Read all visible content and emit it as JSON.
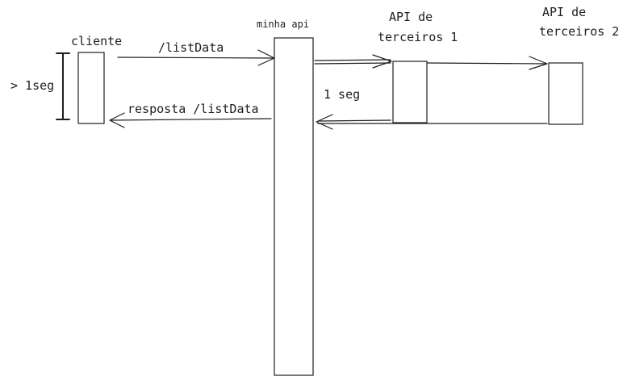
{
  "diagram": {
    "participants": {
      "cliente": "cliente",
      "minha_api": "minha api",
      "api_terceiros_1": [
        "API de",
        "terceiros 1"
      ],
      "api_terceiros_2": [
        "API de",
        "terceiros 2"
      ]
    },
    "messages": {
      "request": "/listData",
      "response": "resposta /listData"
    },
    "durations": {
      "client_wait": "> 1seg",
      "third_party_wait": "1 seg"
    }
  }
}
